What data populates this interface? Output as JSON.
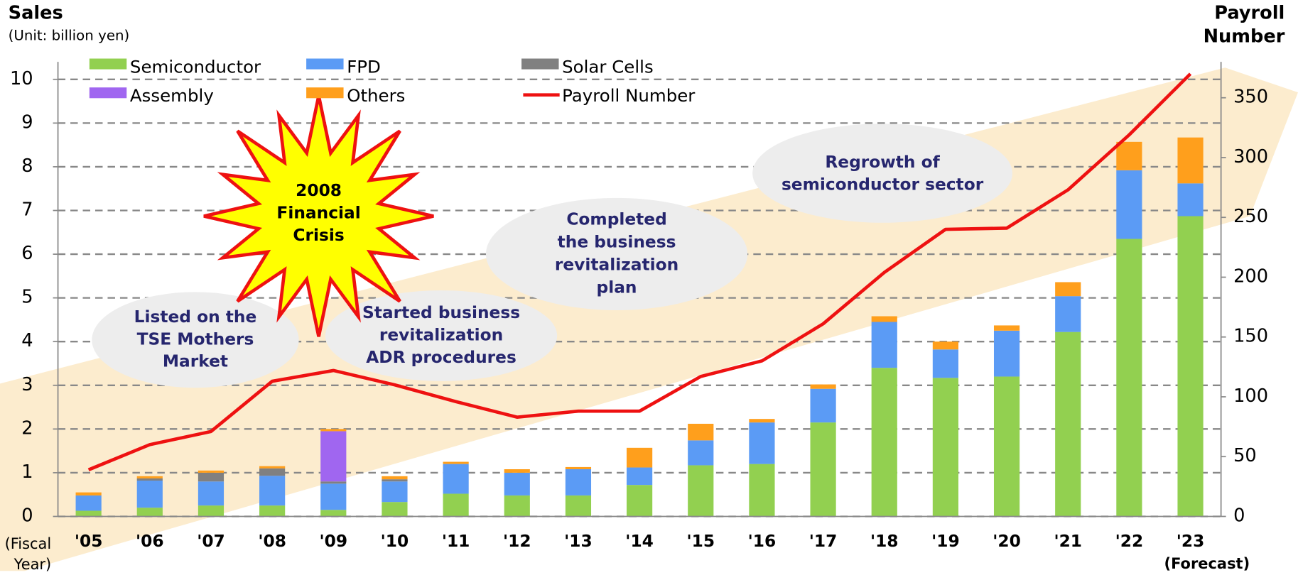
{
  "chart_data": {
    "type": "bar",
    "title": "Sales",
    "subtitle": "(Unit: billion yen)",
    "y2_title": [
      "Payroll",
      "Number"
    ],
    "x_label": [
      "(Fiscal",
      "Year)"
    ],
    "x_note": "(Forecast)",
    "categories": [
      "'05",
      "'06",
      "'07",
      "'08",
      "'09",
      "'10",
      "'11",
      "'12",
      "'13",
      "'14",
      "'15",
      "'16",
      "'17",
      "'18",
      "'19",
      "'20",
      "'21",
      "'22",
      "'23"
    ],
    "series": [
      {
        "name": "Semiconductor",
        "color": "#92d050",
        "values": [
          0.13,
          0.2,
          0.25,
          0.25,
          0.15,
          0.33,
          0.52,
          0.48,
          0.48,
          0.72,
          1.17,
          1.2,
          2.15,
          3.4,
          3.17,
          3.2,
          4.22,
          6.35,
          6.87
        ]
      },
      {
        "name": "FPD",
        "color": "#5b9bf5",
        "values": [
          0.35,
          0.62,
          0.55,
          0.68,
          0.6,
          0.47,
          0.68,
          0.52,
          0.6,
          0.4,
          0.57,
          0.95,
          0.77,
          1.05,
          0.65,
          1.05,
          0.82,
          1.57,
          0.75
        ]
      },
      {
        "name": "Solar Cells",
        "color": "#808080",
        "values": [
          0,
          0.05,
          0.2,
          0.17,
          0.05,
          0.05,
          0,
          0,
          0,
          0,
          0,
          0,
          0,
          0,
          0,
          0,
          0,
          0,
          0
        ]
      },
      {
        "name": "Assembly",
        "color": "#a066f0",
        "values": [
          0,
          0,
          0,
          0,
          1.15,
          0,
          0,
          0,
          0,
          0,
          0,
          0,
          0,
          0,
          0,
          0,
          0,
          0,
          0
        ]
      },
      {
        "name": "Others",
        "color": "#ff9f1c",
        "values": [
          0.07,
          0.05,
          0.05,
          0.05,
          0.05,
          0.07,
          0.05,
          0.08,
          0.05,
          0.45,
          0.38,
          0.08,
          0.1,
          0.13,
          0.18,
          0.12,
          0.32,
          0.65,
          1.05
        ]
      },
      {
        "name": "Payroll Number",
        "color": "#ee1111",
        "type": "line",
        "axis": "y2",
        "values": [
          39,
          60,
          71,
          113,
          122,
          110,
          96,
          83,
          88,
          88,
          117,
          130,
          161,
          204,
          240,
          241,
          273,
          319,
          370
        ]
      }
    ],
    "ylim": [
      0,
      10.4
    ],
    "yticks": [
      0,
      1,
      2,
      3,
      4,
      5,
      6,
      7,
      8,
      9,
      10
    ],
    "y2lim": [
      0,
      380
    ],
    "y2ticks": [
      0,
      50,
      100,
      150,
      200,
      250,
      300,
      350
    ],
    "grid": true,
    "annotations": [
      [
        "Listed on the",
        "TSE Mothers",
        "Market"
      ],
      [
        "2008",
        "Financial",
        "Crisis"
      ],
      [
        "Started business",
        "revitalization",
        "ADR procedures"
      ],
      [
        "Completed",
        "the business",
        "revitalization",
        "plan"
      ],
      [
        "Regrowth of",
        "semiconductor sector"
      ]
    ]
  }
}
